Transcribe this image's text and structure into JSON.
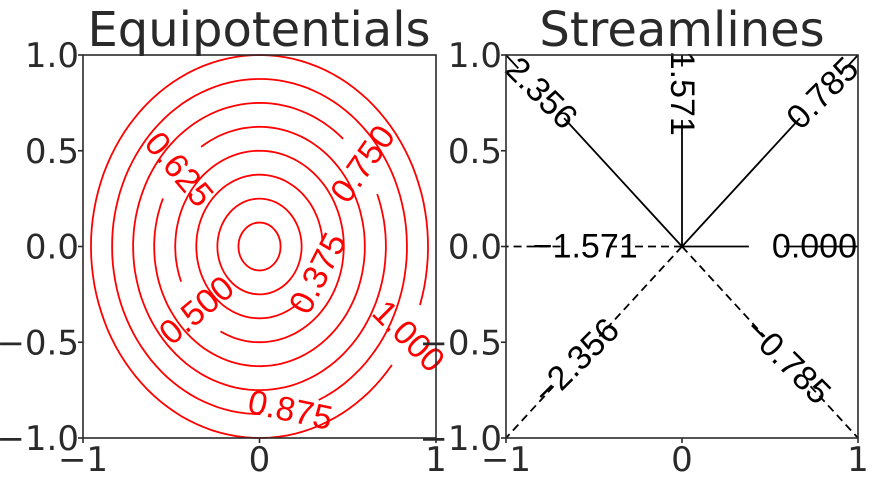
{
  "colors": {
    "equipotential": "#ff0000",
    "streamline": "#000000",
    "axes": "#2a2a2a"
  },
  "chart_data": [
    {
      "type": "line",
      "subtype": "contour",
      "title": "Equipotentials",
      "xlim": [
        -1,
        1
      ],
      "ylim": [
        -1,
        1
      ],
      "xticks": [
        "−1",
        "0",
        "1"
      ],
      "yticks": [
        "1.0",
        "0.5",
        "0.0",
        "−0.5",
        "−1.0"
      ],
      "xtick_values": [
        -1,
        0,
        1
      ],
      "ytick_values": [
        1.0,
        0.5,
        0.0,
        -0.5,
        -1.0
      ],
      "grid": false,
      "color": "#ff0000",
      "levels": [
        {
          "value": 0.125,
          "label": ""
        },
        {
          "value": 0.25,
          "label": ""
        },
        {
          "value": 0.375,
          "label": "0.375",
          "label_angle_deg": 63
        },
        {
          "value": 0.5,
          "label": "0.500",
          "label_angle_deg": 40
        },
        {
          "value": 0.625,
          "label": "0.625",
          "label_angle_deg": -50
        },
        {
          "value": 0.75,
          "label": "0.750",
          "label_angle_deg": 55
        },
        {
          "value": 0.875,
          "label": "0.875",
          "label_angle_deg": -12
        },
        {
          "value": 1.0,
          "label": "1.000",
          "label_angle_deg": -45
        }
      ],
      "contour_shape": "ellipse",
      "ellipse_x_to_y_ratio": 0.88
    },
    {
      "type": "line",
      "subtype": "contour",
      "title": "Streamlines",
      "xlim": [
        -1,
        1
      ],
      "ylim": [
        -1,
        1
      ],
      "xticks": [
        "−1",
        "0",
        "1"
      ],
      "yticks": [
        "1.0",
        "0.5",
        "0.0",
        "−0.5",
        "−1.0"
      ],
      "xtick_values": [
        -1,
        0,
        1
      ],
      "ytick_values": [
        1.0,
        0.5,
        0.0,
        -0.5,
        -1.0
      ],
      "grid": false,
      "color": "#000000",
      "levels": [
        {
          "value": 0.0,
          "label": "0.000",
          "linestyle": "solid"
        },
        {
          "value": 0.785,
          "label": "0.785",
          "linestyle": "solid"
        },
        {
          "value": 1.571,
          "label": "1.571",
          "linestyle": "solid"
        },
        {
          "value": 2.356,
          "label": "2.356",
          "linestyle": "solid"
        },
        {
          "value": -1.571,
          "label": "−1.571",
          "linestyle": "dashed"
        },
        {
          "value": -2.356,
          "label": "−2.356",
          "linestyle": "dashed"
        },
        {
          "value": -0.785,
          "label": "−0.785",
          "linestyle": "dashed"
        }
      ]
    }
  ]
}
